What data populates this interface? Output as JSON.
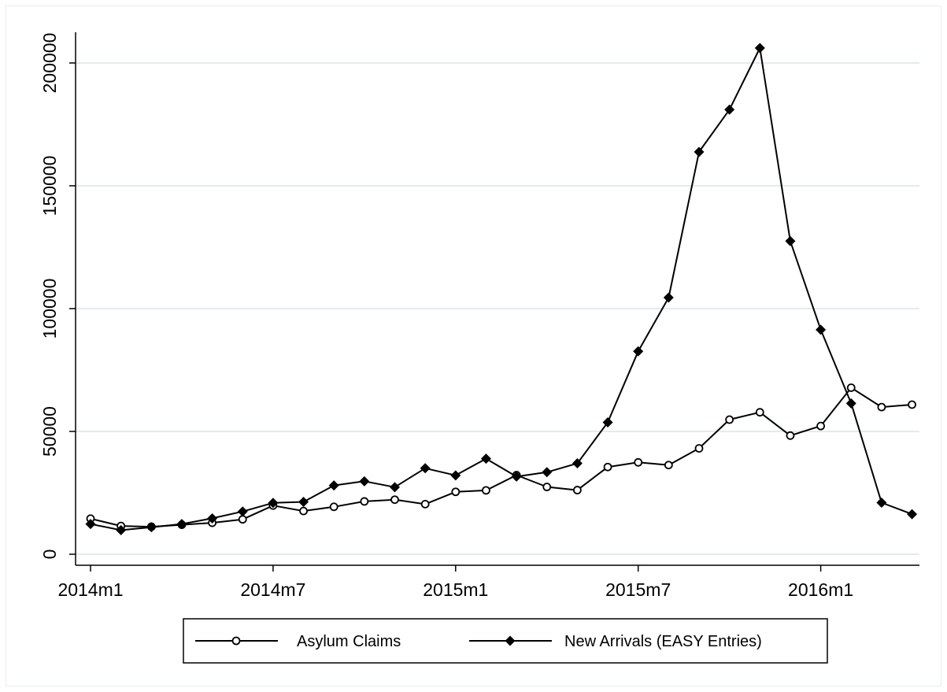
{
  "chart_data": {
    "type": "line",
    "title": "",
    "xlabel": "",
    "ylabel": "",
    "x": [
      "2014m1",
      "2014m2",
      "2014m3",
      "2014m4",
      "2014m5",
      "2014m6",
      "2014m7",
      "2014m8",
      "2014m9",
      "2014m10",
      "2014m11",
      "2014m12",
      "2015m1",
      "2015m2",
      "2015m3",
      "2015m4",
      "2015m5",
      "2015m6",
      "2015m7",
      "2015m8",
      "2015m9",
      "2015m10",
      "2015m11",
      "2015m12",
      "2016m1",
      "2016m2",
      "2016m3",
      "2016m4"
    ],
    "x_ticks": [
      "2014m1",
      "2014m7",
      "2015m1",
      "2015m7",
      "2016m1"
    ],
    "y_ticks": [
      "0",
      "50000",
      "100000",
      "150000",
      "200000"
    ],
    "ylim": [
      0,
      210000
    ],
    "grid": true,
    "legend_position": "bottom",
    "series": [
      {
        "name": "Asylum Claims",
        "marker": "hollow-circle",
        "values": [
          14500,
          11500,
          11200,
          12000,
          12800,
          14200,
          19800,
          17600,
          19300,
          21500,
          22200,
          20400,
          25400,
          26000,
          32200,
          27400,
          26100,
          35500,
          37400,
          36300,
          43100,
          54800,
          57800,
          48300,
          52200,
          67800,
          59900,
          60900
        ]
      },
      {
        "name": "New Arrivals (EASY Entries)",
        "marker": "filled-diamond",
        "values": [
          12300,
          9800,
          11000,
          12300,
          14600,
          17400,
          20900,
          21300,
          28000,
          29700,
          27300,
          35000,
          32100,
          38900,
          31600,
          33400,
          37000,
          53700,
          82600,
          104500,
          163800,
          181000,
          206100,
          127500,
          91400,
          61400,
          21000,
          16300
        ]
      }
    ],
    "color": "#000000",
    "grid_color": "#e3ebed"
  }
}
